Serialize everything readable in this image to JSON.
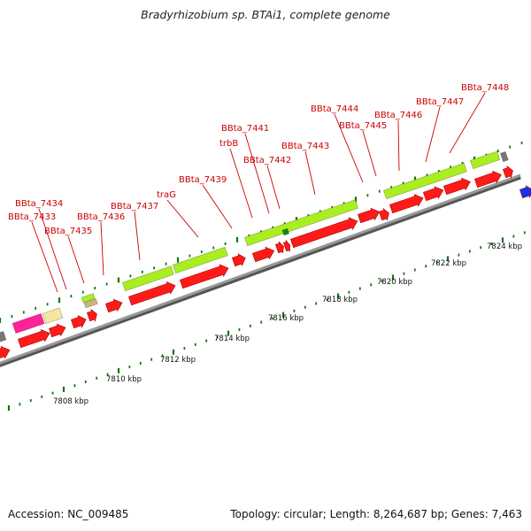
{
  "title": "Bradyrhizobium sp. BTAi1, complete genome",
  "accession": "Accession: NC_009485",
  "summary": "Topology: circular; Length: 8,264,687 bp; Genes: 7,463",
  "colors": {
    "cds": "#ff1a1a",
    "orthologous": "#aaee22",
    "other_gene": "#ff2299",
    "gene_pale": "#f5e6a0",
    "gene_olive": "#c8b878",
    "gene_blue": "#1133ee",
    "gene_gray": "#777777",
    "backbone": "#999999",
    "tick": "#117711",
    "label": "#cc0000"
  },
  "scale_labels": [
    "7808 kbp",
    "7810 kbp",
    "7812 kbp",
    "7814 kbp",
    "7816 kbp",
    "7818 kbp",
    "7820 kbp",
    "7822 kbp",
    "7824 kbp"
  ],
  "gene_labels": [
    "BBta_7433",
    "BBta_7434",
    "BBta_7435",
    "BBta_7436",
    "BBta_7437",
    "traG",
    "BBta_7439",
    "trbB",
    "BBta_7441",
    "BBta_7442",
    "BBta_7443",
    "BBta_7444",
    "BBta_7445",
    "BBta_7446",
    "BBta_7447",
    "BBta_7448"
  ]
}
